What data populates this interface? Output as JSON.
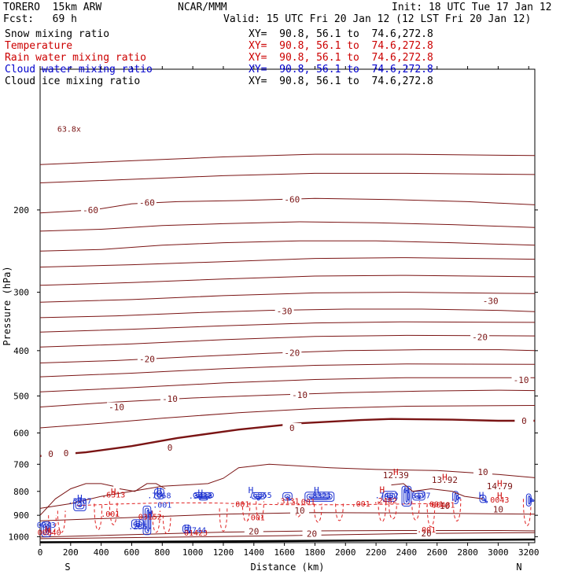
{
  "header": {
    "model_line": "TORERO  15km ARW",
    "org": "NCAR/MMM",
    "init": "Init: 18 UTC Tue 17 Jan 12",
    "fcst": "Fcst:   69 h",
    "valid": "Valid: 15 UTC Fri 20 Jan 12 (12 LST Fri 20 Jan 12)"
  },
  "fields": [
    {
      "label": "Snow mixing ratio",
      "xy": "XY=  90.8, 56.1 to  74.6,272.8",
      "color": "#000000"
    },
    {
      "label": "Temperature",
      "xy": "XY=  90.8, 56.1 to  74.6,272.8",
      "color": "#cc0000"
    },
    {
      "label": "Rain water mixing ratio",
      "xy": "XY=  90.8, 56.1 to  74.6,272.8",
      "color": "#cc0000"
    },
    {
      "label": "Cloud water mixing ratio",
      "xy": "XY=  90.8, 56.1 to  74.6,272.8",
      "color": "#0000cc"
    },
    {
      "label": "Cloud ice mixing ratio",
      "xy": "XY=  90.8, 56.1 to  74.6,272.8",
      "color": "#000000"
    }
  ],
  "chart_data": {
    "type": "contour cross-section",
    "xlabel": "Distance (km)",
    "ylabel": "Pressure (hPa)",
    "xlim": [
      0,
      3240
    ],
    "ylim": [
      1030,
      100
    ],
    "x_ticks": [
      "0",
      "200",
      "400",
      "600",
      "800",
      "1000",
      "1200",
      "1400",
      "1600",
      "1800",
      "2000",
      "2200",
      "2400",
      "2600",
      "2800",
      "3000",
      "3200"
    ],
    "x_tick_values": [
      0,
      200,
      400,
      600,
      800,
      1000,
      1200,
      1400,
      1600,
      1800,
      2000,
      2200,
      2400,
      2600,
      2800,
      3000,
      3200
    ],
    "y_ticks": [
      "200",
      "300",
      "400",
      "500",
      "600",
      "700",
      "800",
      "900",
      "1000"
    ],
    "y_tick_values": [
      200,
      300,
      400,
      500,
      600,
      700,
      800,
      900,
      1000
    ],
    "endpoints": {
      "left": "S",
      "right": "N"
    },
    "temperature_contours": [
      {
        "value": -60,
        "points": [
          [
            0,
            203
          ],
          [
            350,
            200
          ],
          [
            600,
            194
          ],
          [
            900,
            192
          ],
          [
            1300,
            191
          ],
          [
            1800,
            189
          ],
          [
            2300,
            190
          ],
          [
            2800,
            192
          ],
          [
            3240,
            195
          ]
        ]
      },
      {
        "value": -50,
        "points": [
          [
            0,
            222
          ],
          [
            400,
            220
          ],
          [
            800,
            216
          ],
          [
            1200,
            214
          ],
          [
            1700,
            212
          ],
          [
            2200,
            213
          ],
          [
            2700,
            215
          ],
          [
            3240,
            218
          ]
        ]
      },
      {
        "value": -40,
        "points": [
          [
            0,
            245
          ],
          [
            400,
            243
          ],
          [
            800,
            238
          ],
          [
            1200,
            235
          ],
          [
            1700,
            233
          ],
          [
            2200,
            233
          ],
          [
            2700,
            235
          ],
          [
            3240,
            238
          ]
        ]
      },
      {
        "value": -30,
        "points": [
          [
            0,
            340
          ],
          [
            500,
            337
          ],
          [
            1000,
            332
          ],
          [
            1500,
            328
          ],
          [
            2000,
            326
          ],
          [
            2500,
            326
          ],
          [
            3000,
            328
          ],
          [
            3240,
            330
          ]
        ]
      },
      {
        "value": -20,
        "points": [
          [
            0,
            425
          ],
          [
            500,
            420
          ],
          [
            1000,
            412
          ],
          [
            1500,
            405
          ],
          [
            2000,
            400
          ],
          [
            2500,
            398
          ],
          [
            3000,
            398
          ],
          [
            3240,
            400
          ]
        ]
      },
      {
        "value": -10,
        "points": [
          [
            0,
            528
          ],
          [
            500,
            515
          ],
          [
            1000,
            505
          ],
          [
            1500,
            498
          ],
          [
            2000,
            492
          ],
          [
            2500,
            488
          ],
          [
            3000,
            486
          ],
          [
            3240,
            487
          ]
        ]
      },
      {
        "value": 0,
        "points": [
          [
            0,
            672
          ],
          [
            300,
            660
          ],
          [
            600,
            640
          ],
          [
            900,
            615
          ],
          [
            1300,
            590
          ],
          [
            1700,
            572
          ],
          [
            2100,
            563
          ],
          [
            2300,
            560
          ],
          [
            2700,
            562
          ],
          [
            3000,
            565
          ],
          [
            3240,
            565
          ]
        ]
      },
      {
        "value": 10,
        "points": [
          [
            0,
            870
          ],
          [
            200,
            850
          ],
          [
            400,
            820
          ],
          [
            800,
            780
          ],
          [
            1100,
            770
          ],
          [
            1200,
            750
          ],
          [
            1300,
            712
          ],
          [
            1500,
            700
          ],
          [
            1900,
            712
          ],
          [
            2200,
            718
          ],
          [
            2600,
            722
          ],
          [
            3000,
            736
          ],
          [
            3240,
            748
          ]
        ]
      },
      {
        "value": 10,
        "points": [
          [
            0,
            925
          ],
          [
            600,
            910
          ],
          [
            1200,
            895
          ],
          [
            1800,
            888
          ],
          [
            2400,
            890
          ],
          [
            3240,
            895
          ]
        ]
      },
      {
        "value": 20,
        "points": [
          [
            0,
            1002
          ],
          [
            600,
            990
          ],
          [
            1200,
            978
          ],
          [
            1800,
            972
          ],
          [
            2400,
            970
          ],
          [
            3000,
            970
          ],
          [
            3240,
            972
          ]
        ]
      },
      {
        "value": 20,
        "points": [
          [
            0,
            1010
          ],
          [
            800,
            1003
          ],
          [
            1600,
            995
          ],
          [
            2400,
            985
          ],
          [
            3240,
            980
          ]
        ]
      }
    ],
    "temperature_labels": [
      {
        "x": 700,
        "p": 193,
        "text": "-60"
      },
      {
        "x": 330,
        "p": 200,
        "text": "-60"
      },
      {
        "x": 1650,
        "p": 190,
        "text": "-60"
      },
      {
        "x": 1600,
        "p": 329,
        "text": "-30"
      },
      {
        "x": 2950,
        "p": 313,
        "text": "-30"
      },
      {
        "x": 2880,
        "p": 374,
        "text": "-20"
      },
      {
        "x": 700,
        "p": 417,
        "text": "-20"
      },
      {
        "x": 1650,
        "p": 404,
        "text": "-20"
      },
      {
        "x": 3150,
        "p": 462,
        "text": "-10"
      },
      {
        "x": 1700,
        "p": 497,
        "text": "-10"
      },
      {
        "x": 850,
        "p": 507,
        "text": "-10"
      },
      {
        "x": 500,
        "p": 528,
        "text": "-10"
      },
      {
        "x": 850,
        "p": 645,
        "text": "0"
      },
      {
        "x": 1650,
        "p": 585,
        "text": "0"
      },
      {
        "x": 3170,
        "p": 565,
        "text": "0"
      },
      {
        "x": 170,
        "p": 662,
        "text": "0"
      },
      {
        "x": 70,
        "p": 665,
        "text": "0"
      },
      {
        "x": 2900,
        "p": 727,
        "text": "10"
      },
      {
        "x": 1700,
        "p": 878,
        "text": "10"
      },
      {
        "x": 2650,
        "p": 858,
        "text": "10"
      },
      {
        "x": 3000,
        "p": 873,
        "text": "10"
      },
      {
        "x": 1400,
        "p": 973,
        "text": "20"
      },
      {
        "x": 1780,
        "p": 986,
        "text": "20"
      },
      {
        "x": 2530,
        "p": 984,
        "text": "20"
      }
    ],
    "maxima": [
      {
        "x": 2330,
        "p": 738,
        "value": "12.39"
      },
      {
        "x": 2650,
        "p": 756,
        "value": "13.92"
      },
      {
        "x": 3010,
        "p": 780,
        "value": "14.79"
      }
    ],
    "rain_labels": [
      {
        "x": 1310,
        "p": 850,
        "text": ".001"
      },
      {
        "x": 1740,
        "p": 841,
        "text": ".001"
      },
      {
        "x": 2100,
        "p": 849,
        "text": ".001"
      },
      {
        "x": 2580,
        "p": 850,
        "text": ".001"
      },
      {
        "x": 3010,
        "p": 833,
        "text": "0043"
      },
      {
        "x": 460,
        "p": 893,
        "text": ".001"
      },
      {
        "x": 720,
        "p": 904,
        "text": "03152"
      },
      {
        "x": 60,
        "p": 977,
        "text": "00840"
      },
      {
        "x": 1020,
        "p": 979,
        "text": "01423"
      },
      {
        "x": 1410,
        "p": 908,
        "text": ".001"
      },
      {
        "x": 2530,
        "p": 965,
        "text": ".001"
      },
      {
        "x": 2640,
        "p": 854,
        "text": "00481"
      },
      {
        "x": 1620,
        "p": 837,
        "text": ".3131"
      },
      {
        "x": 2260,
        "p": 835,
        "text": ".2482"
      },
      {
        "x": 480,
        "p": 812,
        "text": ".6313"
      }
    ],
    "cloud_water_labels": [
      {
        "x": 780,
        "p": 815,
        "text": ".7668"
      },
      {
        "x": 260,
        "p": 838,
        "text": ".3487"
      },
      {
        "x": 1050,
        "p": 817,
        "text": ".3433"
      },
      {
        "x": 1440,
        "p": 813,
        "text": ".6865"
      },
      {
        "x": 1830,
        "p": 815,
        "text": ".8321"
      },
      {
        "x": 2270,
        "p": 815,
        "text": ".7482"
      },
      {
        "x": 2480,
        "p": 815,
        "text": ".8177"
      },
      {
        "x": 800,
        "p": 853,
        "text": ".001"
      },
      {
        "x": 640,
        "p": 950,
        "text": ".236"
      },
      {
        "x": 1010,
        "p": 967,
        "text": ".7744"
      },
      {
        "x": 40,
        "p": 942,
        "text": "0043"
      }
    ],
    "h_markers": [
      {
        "x": 480,
        "p": 800,
        "color": "red"
      },
      {
        "x": 780,
        "p": 798,
        "color": "blue"
      },
      {
        "x": 260,
        "p": 826,
        "color": "blue"
      },
      {
        "x": 1050,
        "p": 805,
        "color": "blue"
      },
      {
        "x": 1380,
        "p": 794,
        "color": "blue"
      },
      {
        "x": 1810,
        "p": 794,
        "color": "blue"
      },
      {
        "x": 2240,
        "p": 793,
        "color": "red"
      },
      {
        "x": 2400,
        "p": 795,
        "color": "blue"
      },
      {
        "x": 2890,
        "p": 815,
        "color": "blue"
      },
      {
        "x": 640,
        "p": 937,
        "color": "blue"
      },
      {
        "x": 720,
        "p": 893,
        "color": "blue"
      },
      {
        "x": 960,
        "p": 957,
        "color": "blue"
      },
      {
        "x": 50,
        "p": 965,
        "color": "red"
      },
      {
        "x": 2330,
        "p": 727,
        "color": "red"
      },
      {
        "x": 2650,
        "p": 745,
        "color": "red"
      },
      {
        "x": 3010,
        "p": 769,
        "color": "red"
      },
      {
        "x": 3010,
        "p": 817,
        "color": "red"
      }
    ],
    "cloud_ice_label": {
      "x": 190,
      "p": 134,
      "text": "63.8x"
    }
  }
}
